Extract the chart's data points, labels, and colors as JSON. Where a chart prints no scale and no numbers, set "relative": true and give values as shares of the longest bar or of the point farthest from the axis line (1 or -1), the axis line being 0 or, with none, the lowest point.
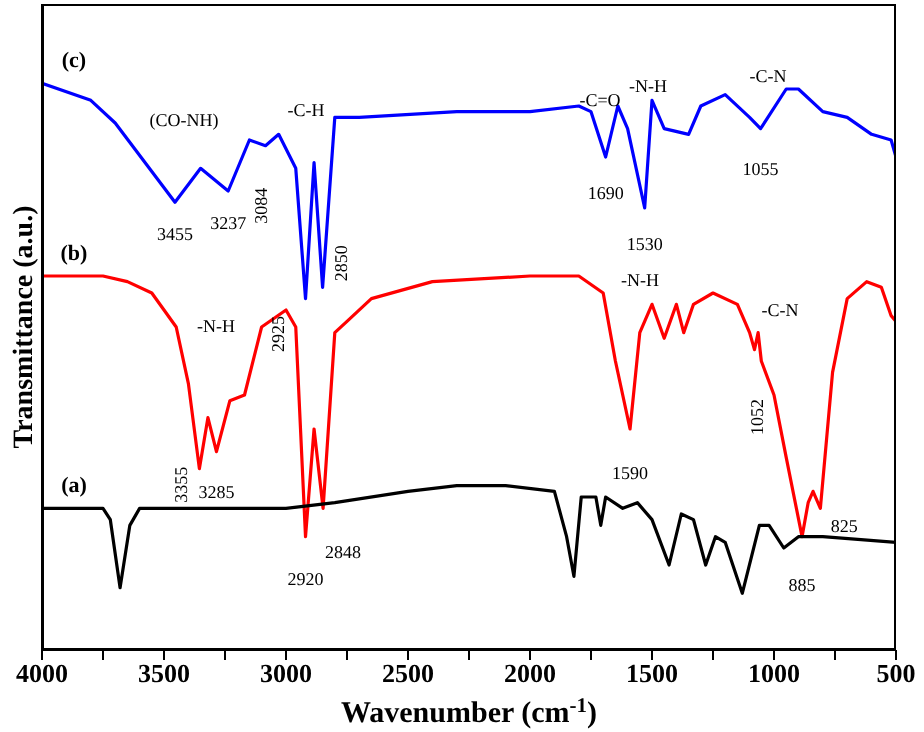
{
  "chart_data": {
    "type": "line",
    "relative": true,
    "xlabel": "Wavenumber (cm$^{-1}$)",
    "ylabel": "Transmittance (a.u.)",
    "xlim": [
      4000,
      500
    ],
    "xticks": [
      4000,
      {
        "value": 3750,
        "label": null
      },
      3500,
      {
        "value": 3250,
        "label": null
      },
      3000,
      {
        "value": 2750,
        "label": null
      },
      2500,
      {
        "value": 2250,
        "label": null
      },
      2000,
      {
        "value": 1750,
        "label": null
      },
      1500,
      {
        "value": 1250,
        "label": null
      },
      1000,
      {
        "value": 750,
        "label": null
      },
      500
    ],
    "series": [
      {
        "name": "(c)",
        "color": "#0000ff",
        "x": [
          4000,
          3800,
          3700,
          3455,
          3350,
          3237,
          3150,
          3084,
          3030,
          2960,
          2920,
          2885,
          2850,
          2800,
          2700,
          2300,
          2000,
          1800,
          1750,
          1690,
          1640,
          1600,
          1530,
          1500,
          1450,
          1350,
          1300,
          1200,
          1100,
          1055,
          950,
          900,
          800,
          700,
          600,
          520,
          500
        ],
        "values": [
          1.0,
          0.97,
          0.93,
          0.79,
          0.85,
          0.81,
          0.9,
          0.89,
          0.91,
          0.85,
          0.62,
          0.86,
          0.64,
          0.94,
          0.94,
          0.95,
          0.95,
          0.96,
          0.95,
          0.87,
          0.96,
          0.92,
          0.78,
          0.97,
          0.92,
          0.91,
          0.96,
          0.98,
          0.94,
          0.92,
          0.99,
          0.99,
          0.95,
          0.94,
          0.91,
          0.9,
          0.87
        ]
      },
      {
        "name": "(b)",
        "color": "#ff0000",
        "x": [
          4000,
          3750,
          3650,
          3550,
          3450,
          3400,
          3355,
          3320,
          3285,
          3230,
          3170,
          3100,
          3000,
          2960,
          2920,
          2885,
          2848,
          2800,
          2750,
          2650,
          2400,
          2000,
          1800,
          1700,
          1650,
          1590,
          1550,
          1500,
          1450,
          1400,
          1370,
          1330,
          1250,
          1150,
          1100,
          1080,
          1065,
          1052,
          1000,
          950,
          885,
          860,
          840,
          810,
          760,
          700,
          620,
          560,
          520,
          500
        ],
        "values": [
          0.66,
          0.66,
          0.65,
          0.63,
          0.57,
          0.47,
          0.32,
          0.41,
          0.35,
          0.44,
          0.45,
          0.57,
          0.6,
          0.57,
          0.2,
          0.39,
          0.25,
          0.56,
          0.58,
          0.62,
          0.65,
          0.66,
          0.66,
          0.63,
          0.51,
          0.39,
          0.56,
          0.61,
          0.55,
          0.61,
          0.56,
          0.61,
          0.63,
          0.61,
          0.56,
          0.53,
          0.56,
          0.51,
          0.45,
          0.34,
          0.2,
          0.26,
          0.28,
          0.25,
          0.49,
          0.62,
          0.65,
          0.64,
          0.59,
          0.58
        ]
      },
      {
        "name": "(a)",
        "color": "#000000",
        "x": [
          4000,
          3750,
          3720,
          3680,
          3640,
          3600,
          3400,
          3000,
          2800,
          2500,
          2300,
          2100,
          1900,
          1850,
          1820,
          1790,
          1730,
          1710,
          1690,
          1620,
          1560,
          1500,
          1430,
          1380,
          1330,
          1280,
          1240,
          1200,
          1130,
          1060,
          1020,
          960,
          900,
          800,
          500
        ],
        "values": [
          0.25,
          0.25,
          0.23,
          0.11,
          0.22,
          0.25,
          0.25,
          0.25,
          0.26,
          0.28,
          0.29,
          0.29,
          0.28,
          0.2,
          0.13,
          0.27,
          0.27,
          0.22,
          0.27,
          0.25,
          0.26,
          0.23,
          0.15,
          0.24,
          0.23,
          0.15,
          0.2,
          0.19,
          0.1,
          0.22,
          0.22,
          0.18,
          0.2,
          0.2,
          0.19
        ]
      }
    ],
    "annotations": [
      "(CO-NH)",
      "-C-H",
      "-C=O",
      "-N-H",
      "-C-N",
      {
        "text": "3455",
        "x": 3455,
        "y": 0.79
      },
      {
        "text": "3237",
        "x": 3237,
        "y": 0.81
      },
      {
        "text": "3084",
        "x": 3084,
        "y": 0.89
      },
      {
        "text": "2850",
        "x": 2850,
        "y": 0.64
      },
      {
        "text": "1690",
        "x": 1690,
        "y": 0.87
      },
      {
        "text": "1530",
        "x": 1530,
        "y": 0.78
      },
      {
        "text": "1055",
        "x": 1055,
        "y": 0.92
      },
      "-N-H",
      {
        "text": "2925",
        "x": 3000,
        "y": 0.6
      },
      "-N-H",
      "-C-N",
      {
        "text": "1052",
        "x": 1052,
        "y": 0.51
      },
      {
        "text": "3355",
        "x": 3355,
        "y": 0.32
      },
      {
        "text": "3285",
        "x": 3285,
        "y": 0.35
      },
      {
        "text": "1590",
        "x": 1590,
        "y": 0.39
      },
      {
        "text": "2920",
        "x": 2920,
        "y": 0.2
      },
      {
        "text": "2848",
        "x": 2848,
        "y": 0.25
      },
      {
        "text": "885",
        "x": 885,
        "y": 0.2
      },
      {
        "text": "825",
        "x": 810,
        "y": 0.25
      }
    ]
  }
}
